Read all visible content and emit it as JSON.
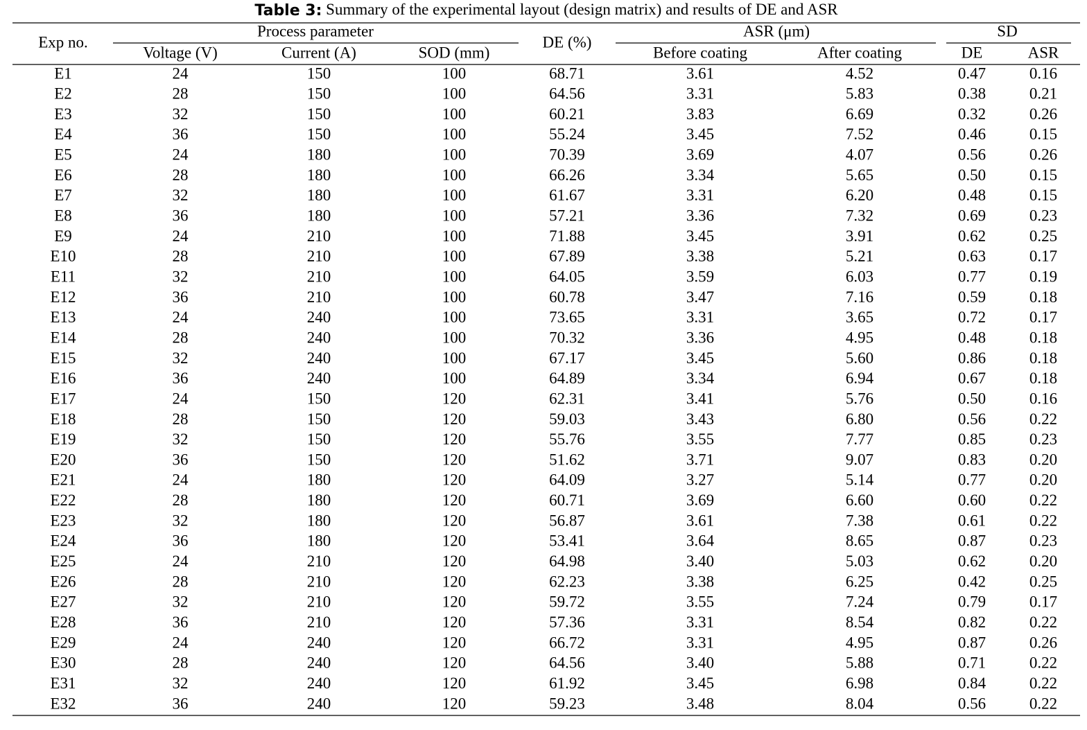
{
  "title": {
    "label": "Table 3:",
    "text": "Summary of the experimental layout (design matrix) and results of DE and ASR"
  },
  "table": {
    "header": {
      "exp_no": "Exp no.",
      "process_parameter": "Process parameter",
      "de": "DE (%)",
      "asr": "ASR (μm)",
      "sd": "SD"
    },
    "subheader": [
      "Voltage (V)",
      "Current (A)",
      "SOD (mm)",
      "Before coating",
      "After coating",
      "DE",
      "ASR"
    ],
    "rows": [
      [
        "E1",
        "24",
        "150",
        "100",
        "68.71",
        "3.61",
        "4.52",
        "0.47",
        "0.16"
      ],
      [
        "E2",
        "28",
        "150",
        "100",
        "64.56",
        "3.31",
        "5.83",
        "0.38",
        "0.21"
      ],
      [
        "E3",
        "32",
        "150",
        "100",
        "60.21",
        "3.83",
        "6.69",
        "0.32",
        "0.26"
      ],
      [
        "E4",
        "36",
        "150",
        "100",
        "55.24",
        "3.45",
        "7.52",
        "0.46",
        "0.15"
      ],
      [
        "E5",
        "24",
        "180",
        "100",
        "70.39",
        "3.69",
        "4.07",
        "0.56",
        "0.26"
      ],
      [
        "E6",
        "28",
        "180",
        "100",
        "66.26",
        "3.34",
        "5.65",
        "0.50",
        "0.15"
      ],
      [
        "E7",
        "32",
        "180",
        "100",
        "61.67",
        "3.31",
        "6.20",
        "0.48",
        "0.15"
      ],
      [
        "E8",
        "36",
        "180",
        "100",
        "57.21",
        "3.36",
        "7.32",
        "0.69",
        "0.23"
      ],
      [
        "E9",
        "24",
        "210",
        "100",
        "71.88",
        "3.45",
        "3.91",
        "0.62",
        "0.25"
      ],
      [
        "E10",
        "28",
        "210",
        "100",
        "67.89",
        "3.38",
        "5.21",
        "0.63",
        "0.17"
      ],
      [
        "E11",
        "32",
        "210",
        "100",
        "64.05",
        "3.59",
        "6.03",
        "0.77",
        "0.19"
      ],
      [
        "E12",
        "36",
        "210",
        "100",
        "60.78",
        "3.47",
        "7.16",
        "0.59",
        "0.18"
      ],
      [
        "E13",
        "24",
        "240",
        "100",
        "73.65",
        "3.31",
        "3.65",
        "0.72",
        "0.17"
      ],
      [
        "E14",
        "28",
        "240",
        "100",
        "70.32",
        "3.36",
        "4.95",
        "0.48",
        "0.18"
      ],
      [
        "E15",
        "32",
        "240",
        "100",
        "67.17",
        "3.45",
        "5.60",
        "0.86",
        "0.18"
      ],
      [
        "E16",
        "36",
        "240",
        "100",
        "64.89",
        "3.34",
        "6.94",
        "0.67",
        "0.18"
      ],
      [
        "E17",
        "24",
        "150",
        "120",
        "62.31",
        "3.41",
        "5.76",
        "0.50",
        "0.16"
      ],
      [
        "E18",
        "28",
        "150",
        "120",
        "59.03",
        "3.43",
        "6.80",
        "0.56",
        "0.22"
      ],
      [
        "E19",
        "32",
        "150",
        "120",
        "55.76",
        "3.55",
        "7.77",
        "0.85",
        "0.23"
      ],
      [
        "E20",
        "36",
        "150",
        "120",
        "51.62",
        "3.71",
        "9.07",
        "0.83",
        "0.20"
      ],
      [
        "E21",
        "24",
        "180",
        "120",
        "64.09",
        "3.27",
        "5.14",
        "0.77",
        "0.20"
      ],
      [
        "E22",
        "28",
        "180",
        "120",
        "60.71",
        "3.69",
        "6.60",
        "0.60",
        "0.22"
      ],
      [
        "E23",
        "32",
        "180",
        "120",
        "56.87",
        "3.61",
        "7.38",
        "0.61",
        "0.22"
      ],
      [
        "E24",
        "36",
        "180",
        "120",
        "53.41",
        "3.64",
        "8.65",
        "0.87",
        "0.23"
      ],
      [
        "E25",
        "24",
        "210",
        "120",
        "64.98",
        "3.40",
        "5.03",
        "0.62",
        "0.20"
      ],
      [
        "E26",
        "28",
        "210",
        "120",
        "62.23",
        "3.38",
        "6.25",
        "0.42",
        "0.25"
      ],
      [
        "E27",
        "32",
        "210",
        "120",
        "59.72",
        "3.55",
        "7.24",
        "0.79",
        "0.17"
      ],
      [
        "E28",
        "36",
        "210",
        "120",
        "57.36",
        "3.31",
        "8.54",
        "0.82",
        "0.22"
      ],
      [
        "E29",
        "24",
        "240",
        "120",
        "66.72",
        "3.31",
        "4.95",
        "0.87",
        "0.26"
      ],
      [
        "E30",
        "28",
        "240",
        "120",
        "64.56",
        "3.40",
        "5.88",
        "0.71",
        "0.22"
      ],
      [
        "E31",
        "32",
        "240",
        "120",
        "61.92",
        "3.45",
        "6.98",
        "0.84",
        "0.22"
      ],
      [
        "E32",
        "36",
        "240",
        "120",
        "59.23",
        "3.48",
        "8.04",
        "0.56",
        "0.22"
      ]
    ]
  }
}
